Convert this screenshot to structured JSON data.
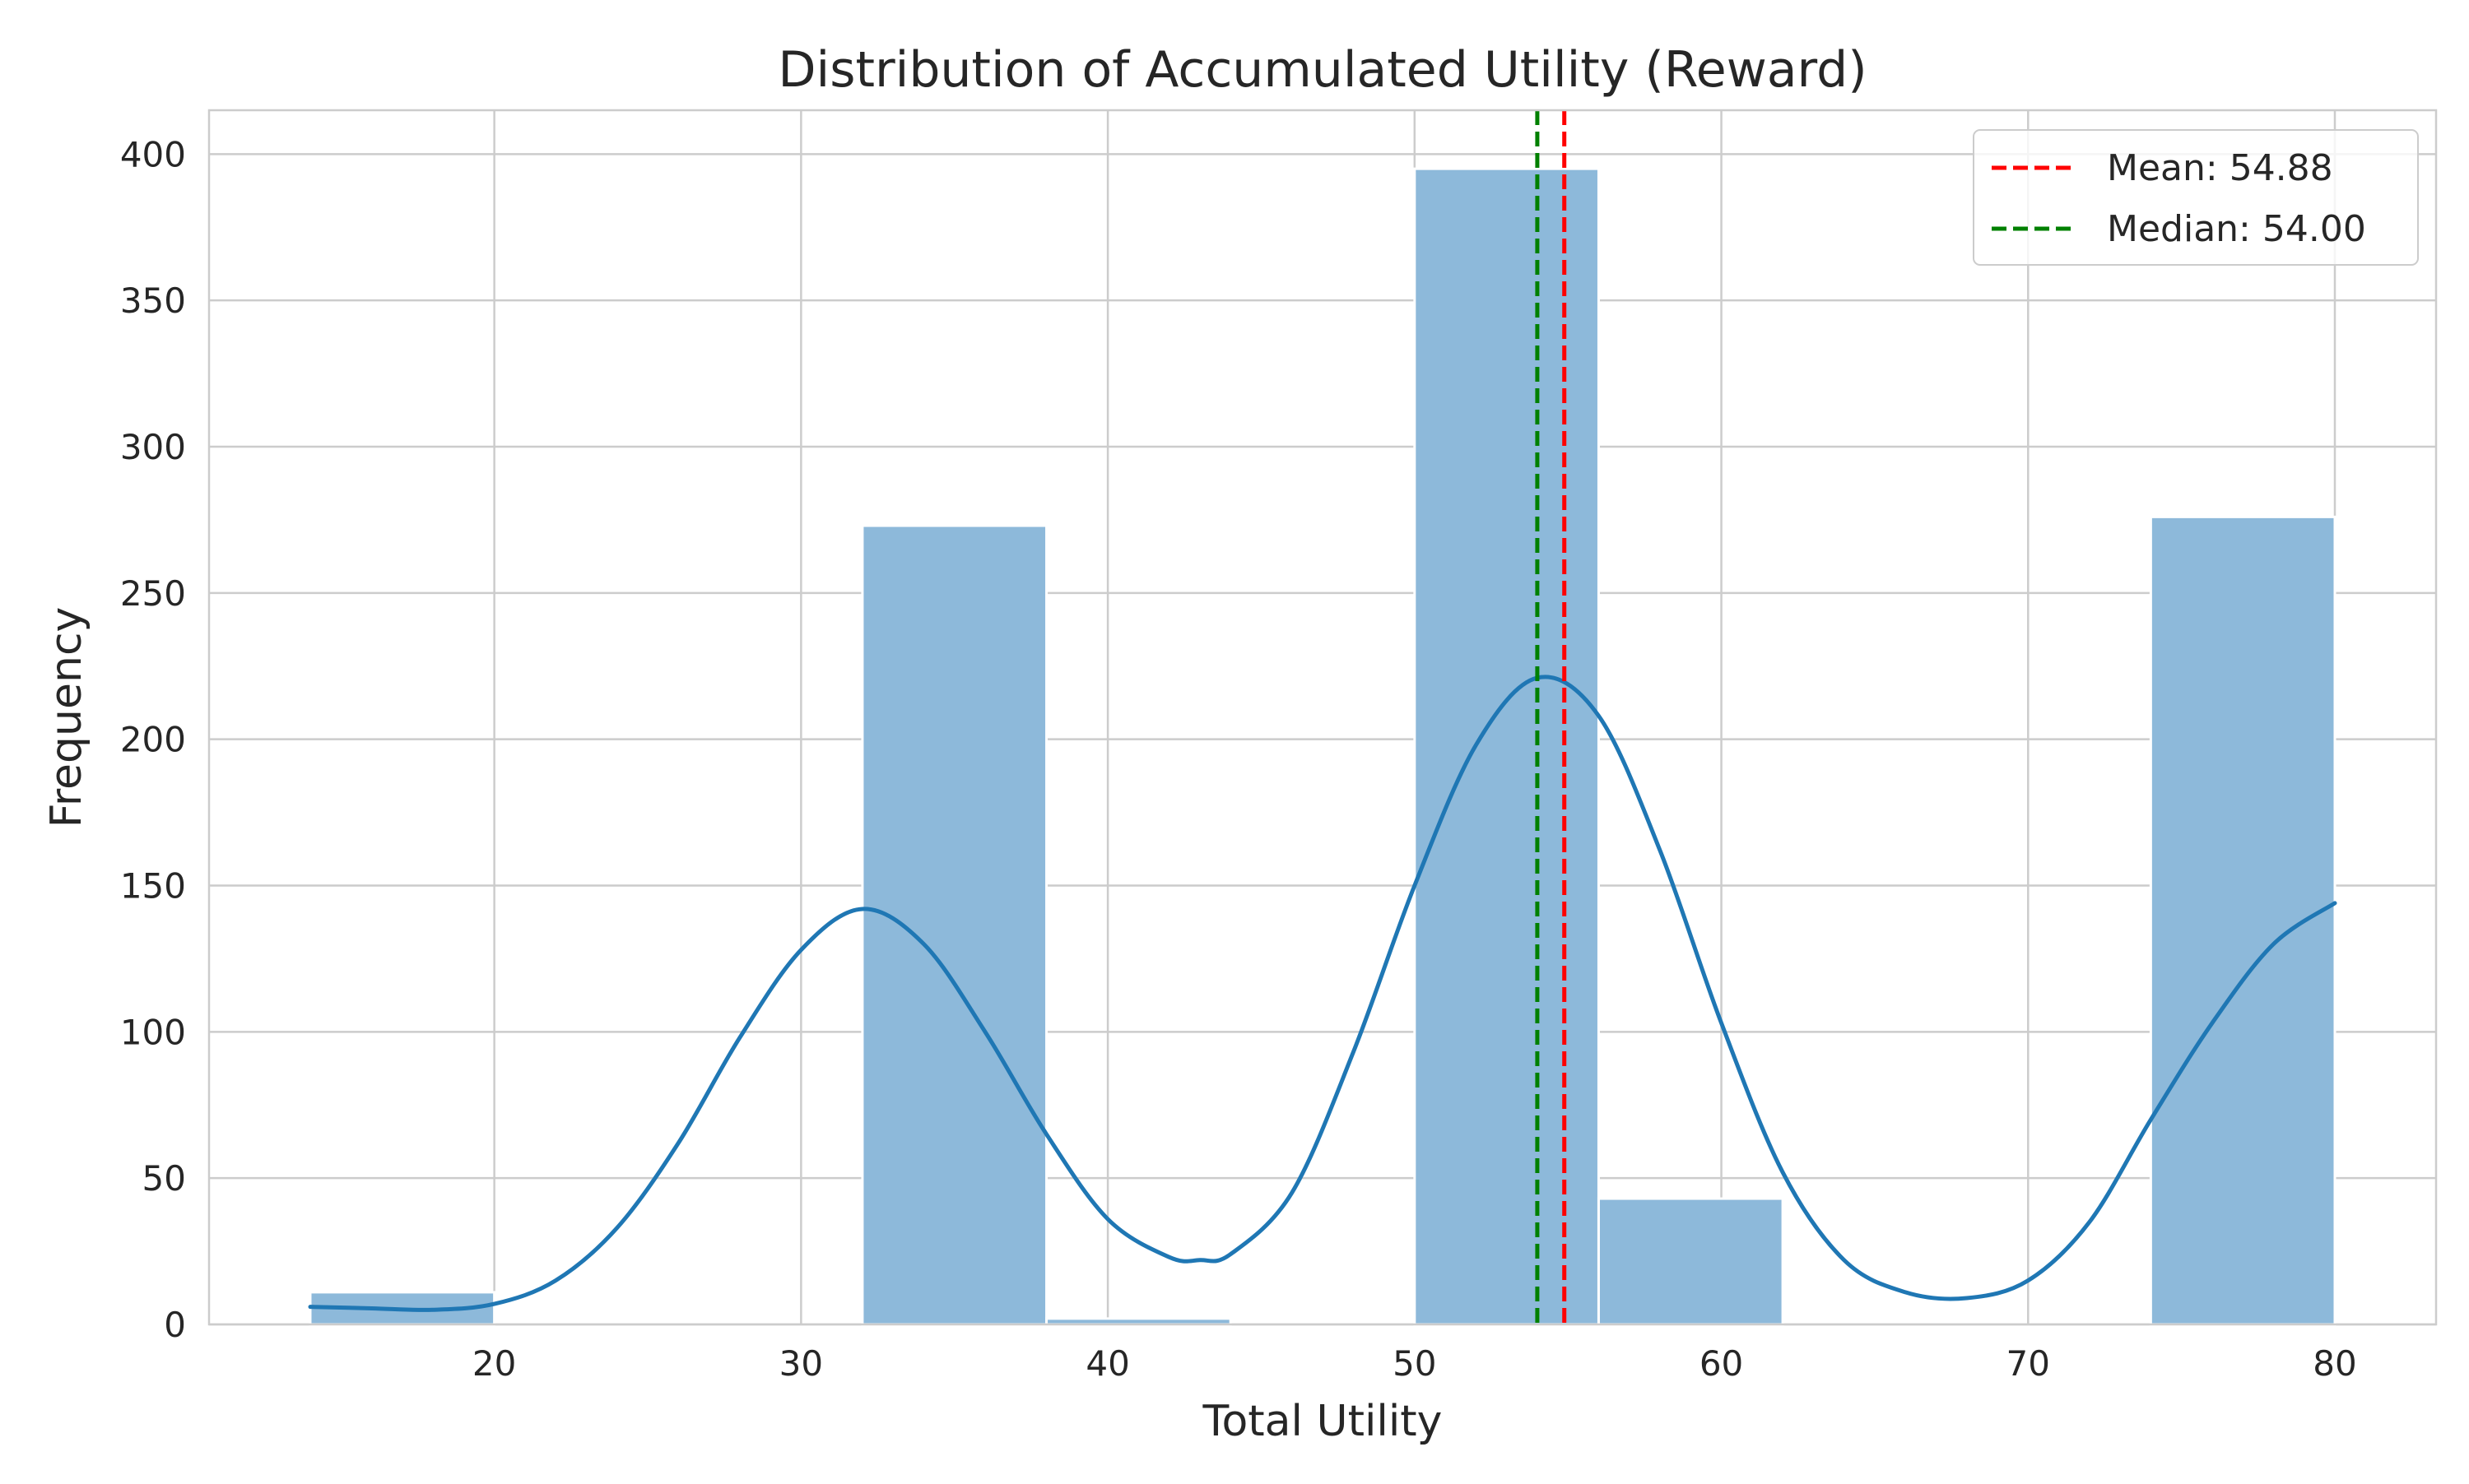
{
  "chart_data": {
    "type": "bar",
    "title": "Distribution of Accumulated Utility (Reward)",
    "xlabel": "Total Utility",
    "ylabel": "Frequency",
    "xlim": [
      10.7,
      83.3
    ],
    "ylim": [
      0,
      415
    ],
    "xticks": [
      20,
      30,
      40,
      50,
      60,
      70,
      80
    ],
    "yticks": [
      0,
      50,
      100,
      150,
      200,
      250,
      300,
      350,
      400
    ],
    "grid": true,
    "legend_position": "top-right",
    "bins": [
      {
        "start": 14,
        "end": 20,
        "count": 11
      },
      {
        "start": 20,
        "end": 26,
        "count": 0
      },
      {
        "start": 26,
        "end": 32,
        "count": 0
      },
      {
        "start": 32,
        "end": 38,
        "count": 273
      },
      {
        "start": 38,
        "end": 44,
        "count": 2
      },
      {
        "start": 44,
        "end": 50,
        "count": 0
      },
      {
        "start": 50,
        "end": 56,
        "count": 395
      },
      {
        "start": 56,
        "end": 62,
        "count": 43
      },
      {
        "start": 62,
        "end": 68,
        "count": 0
      },
      {
        "start": 68,
        "end": 74,
        "count": 0
      },
      {
        "start": 74,
        "end": 80,
        "count": 276
      }
    ],
    "kde": {
      "x": [
        14,
        16,
        18,
        20,
        22,
        24,
        26,
        28,
        30,
        32,
        34,
        36,
        38,
        40,
        42,
        43,
        44,
        46,
        48,
        50,
        52,
        54,
        56,
        58,
        60,
        62,
        64,
        66,
        68,
        70,
        72,
        74,
        76,
        78,
        80
      ],
      "y": [
        6,
        5.5,
        5,
        7,
        15,
        33,
        62,
        98,
        128,
        142,
        130,
        100,
        65,
        36,
        23,
        22,
        24,
        45,
        93,
        150,
        198,
        221,
        208,
        162,
        103,
        52,
        22,
        11,
        9,
        15,
        35,
        70,
        103,
        130,
        144
      ]
    },
    "reference_lines": [
      {
        "name": "Mean: 54.88",
        "value": 54.88,
        "color": "#ff0000"
      },
      {
        "name": "Median: 54.00",
        "value": 54.0,
        "color": "#008000"
      }
    ],
    "colors": {
      "bar_fill": "#8db9da",
      "bar_edge": "#ffffff",
      "kde_line": "#1f77b4",
      "grid": "#cccccc",
      "axes": "#cccccc"
    }
  }
}
